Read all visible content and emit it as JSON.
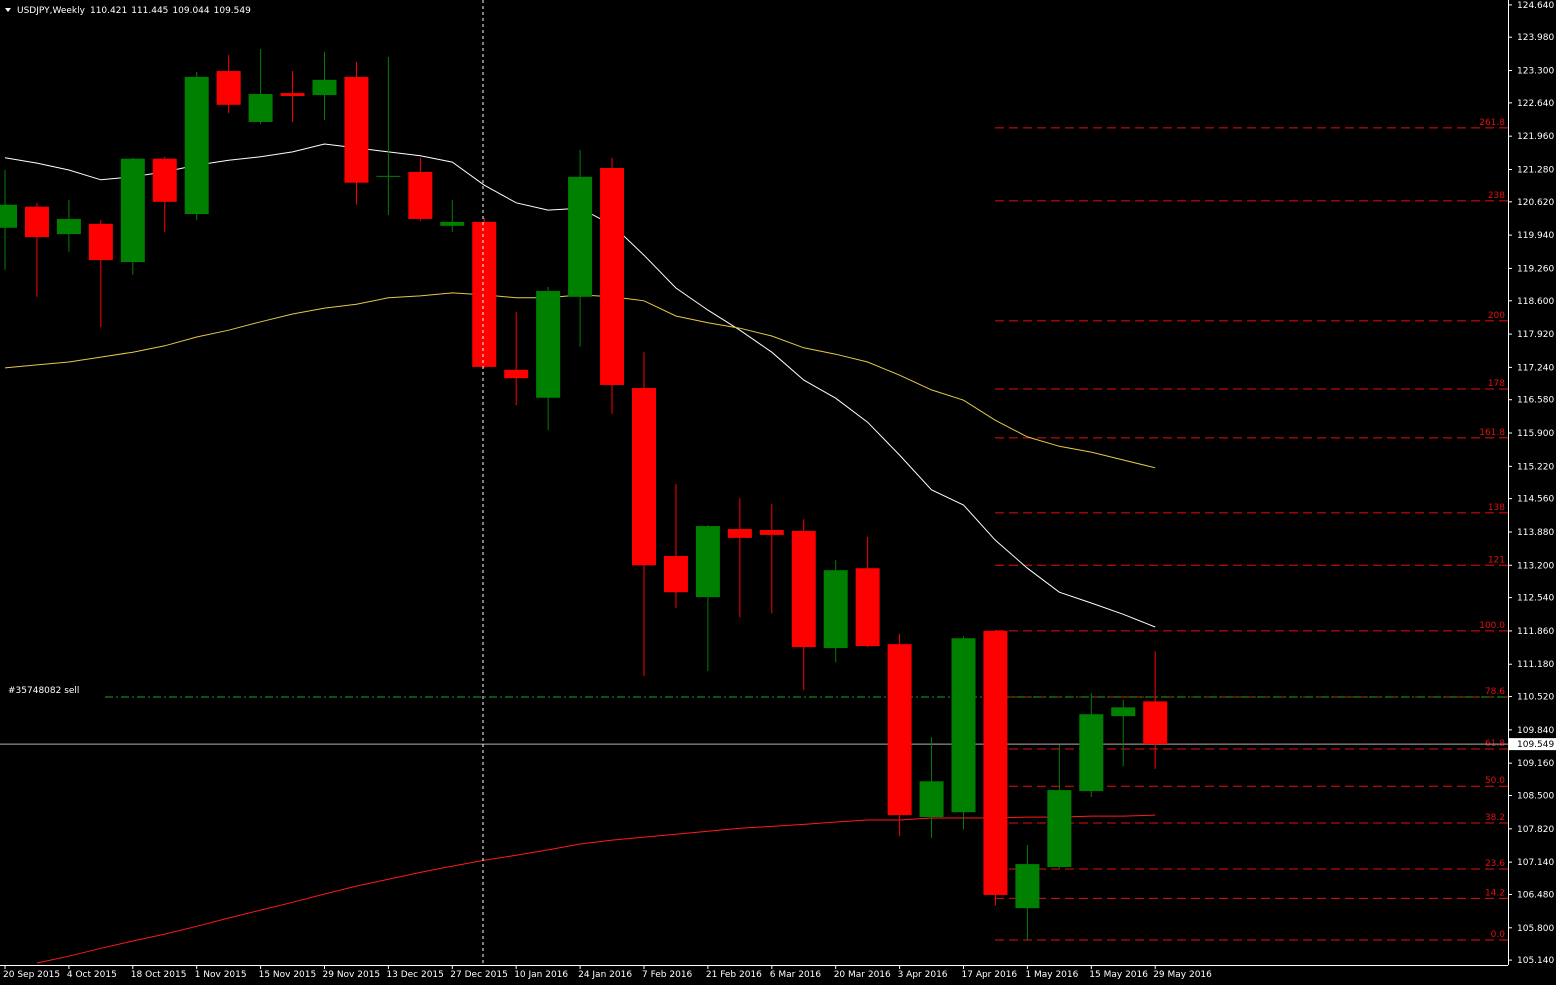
{
  "header": {
    "symbol": "USDJPY,Weekly"
  },
  "chart_data": {
    "type": "candlestick",
    "categories": [
      "20 Sep 2015",
      null,
      "4 Oct 2015",
      null,
      "18 Oct 2015",
      null,
      "1 Nov 2015",
      null,
      "15 Nov 2015",
      null,
      "29 Nov 2015",
      null,
      "13 Dec 2015",
      null,
      "27 Dec 2015",
      null,
      "10 Jan 2016",
      null,
      "24 Jan 2016",
      null,
      "7 Feb 2016",
      null,
      "21 Feb 2016",
      null,
      "6 Mar 2016",
      null,
      "20 Mar 2016",
      null,
      "3 Apr 2016",
      null,
      "17 Apr 2016",
      null,
      "1 May 2016",
      null,
      "15 May 2016",
      null,
      "29 May 2016"
    ],
    "ylim": [
      105.04,
      124.74
    ],
    "yticks": [
      {
        "value": 124.64,
        "label": "124.640"
      },
      {
        "value": 123.98,
        "label": "123.980"
      },
      {
        "value": 123.3,
        "label": "123.300"
      },
      {
        "value": 122.64,
        "label": "122.640"
      },
      {
        "value": 121.96,
        "label": "121.960"
      },
      {
        "value": 121.28,
        "label": "121.280"
      },
      {
        "value": 120.62,
        "label": "120.620"
      },
      {
        "value": 119.94,
        "label": "119.940"
      },
      {
        "value": 119.26,
        "label": "119.260"
      },
      {
        "value": 118.6,
        "label": "118.600"
      },
      {
        "value": 117.92,
        "label": "117.920"
      },
      {
        "value": 117.24,
        "label": "117.240"
      },
      {
        "value": 116.58,
        "label": "116.580"
      },
      {
        "value": 115.9,
        "label": "115.900"
      },
      {
        "value": 115.22,
        "label": "115.220"
      },
      {
        "value": 114.56,
        "label": "114.560"
      },
      {
        "value": 113.88,
        "label": "113.880"
      },
      {
        "value": 113.2,
        "label": "113.200"
      },
      {
        "value": 112.54,
        "label": "112.540"
      },
      {
        "value": 111.86,
        "label": "111.860"
      },
      {
        "value": 111.18,
        "label": "111.180"
      },
      {
        "value": 110.52,
        "label": "110.520"
      },
      {
        "value": 109.84,
        "label": "109.840"
      },
      {
        "value": 109.16,
        "label": "109.160"
      },
      {
        "value": 108.5,
        "label": "108.500"
      },
      {
        "value": 107.82,
        "label": "107.820"
      },
      {
        "value": 107.14,
        "label": "107.140"
      },
      {
        "value": 106.48,
        "label": "106.480"
      },
      {
        "value": 105.8,
        "label": "105.800"
      },
      {
        "value": 105.14,
        "label": "105.140"
      }
    ],
    "candles": {
      "open": [
        120.09,
        120.52,
        119.96,
        120.17,
        119.39,
        121.5,
        120.37,
        123.29,
        122.25,
        122.84,
        122.8,
        123.17,
        121.13,
        121.23,
        120.13,
        120.21,
        117.19,
        116.62,
        118.68,
        121.31,
        116.82,
        113.39,
        112.55,
        113.94,
        113.92,
        113.9,
        111.51,
        113.14,
        111.59,
        108.06,
        108.16,
        111.86,
        106.2,
        107.04,
        108.59,
        110.12,
        110.421
      ],
      "high": [
        121.27,
        120.6,
        120.66,
        120.25,
        121.52,
        121.54,
        123.27,
        123.62,
        123.74,
        123.29,
        123.68,
        123.48,
        123.58,
        121.52,
        120.66,
        120.29,
        118.37,
        118.88,
        121.68,
        121.52,
        117.55,
        114.86,
        114.02,
        114.57,
        114.45,
        114.14,
        113.31,
        113.78,
        111.8,
        109.69,
        111.75,
        111.88,
        107.49,
        109.53,
        110.59,
        110.45,
        111.445
      ],
      "low": [
        119.23,
        118.68,
        119.6,
        118.06,
        119.13,
        120.0,
        120.25,
        122.43,
        122.21,
        122.25,
        122.29,
        120.56,
        120.35,
        120.23,
        120.0,
        117.23,
        116.47,
        115.96,
        117.66,
        116.29,
        110.94,
        112.33,
        111.04,
        112.14,
        112.22,
        110.65,
        111.22,
        111.53,
        107.67,
        107.63,
        107.81,
        106.26,
        105.55,
        107.02,
        108.47,
        109.1,
        109.044
      ],
      "close": [
        120.56,
        119.9,
        120.27,
        119.43,
        121.5,
        120.62,
        123.17,
        122.6,
        122.82,
        122.78,
        123.11,
        121.01,
        121.15,
        120.27,
        120.21,
        117.25,
        117.02,
        118.8,
        121.13,
        116.88,
        113.2,
        112.65,
        114.0,
        113.76,
        113.82,
        111.53,
        113.1,
        111.55,
        108.1,
        108.79,
        111.71,
        106.47,
        107.1,
        108.61,
        110.16,
        110.3,
        109.549
      ]
    },
    "up_color": "#008000",
    "down_color": "#ff0000",
    "moving_averages": [
      {
        "color": "#ffffff",
        "values": [
          121.52,
          121.41,
          121.27,
          121.07,
          121.13,
          121.23,
          121.37,
          121.47,
          121.54,
          121.64,
          121.8,
          121.72,
          121.64,
          121.56,
          121.43,
          120.96,
          120.6,
          120.45,
          120.49,
          120.15,
          119.53,
          118.86,
          118.41,
          118.0,
          117.55,
          116.98,
          116.61,
          116.12,
          115.45,
          114.74,
          114.43,
          113.71,
          113.14,
          112.65,
          112.43,
          112.2,
          111.94
        ]
      },
      {
        "color": "#e6c84a",
        "values": [
          117.23,
          117.29,
          117.35,
          117.45,
          117.55,
          117.68,
          117.86,
          118.0,
          118.17,
          118.33,
          118.45,
          118.53,
          118.66,
          118.7,
          118.76,
          118.72,
          118.66,
          118.66,
          118.72,
          118.68,
          118.6,
          118.29,
          118.15,
          118.04,
          117.88,
          117.64,
          117.51,
          117.35,
          117.08,
          116.78,
          116.57,
          116.16,
          115.82,
          115.63,
          115.51,
          115.35,
          115.19
        ]
      },
      {
        "color": "#ff1a1a",
        "values": [
          null,
          105.08,
          105.22,
          105.38,
          105.53,
          105.67,
          105.83,
          106.0,
          106.16,
          106.32,
          106.49,
          106.65,
          106.79,
          106.93,
          107.06,
          107.18,
          107.28,
          107.39,
          107.51,
          107.59,
          107.65,
          107.71,
          107.77,
          107.83,
          107.87,
          107.91,
          107.96,
          108.0,
          108.0,
          108.04,
          108.04,
          108.04,
          108.06,
          108.06,
          108.08,
          108.08,
          108.1
        ]
      }
    ],
    "fib_color": "#e01010",
    "fib_levels": [
      {
        "label": "261.8",
        "price": 122.13
      },
      {
        "label": "238",
        "price": 120.64
      },
      {
        "label": "200",
        "price": 118.19
      },
      {
        "label": "178",
        "price": 116.8
      },
      {
        "label": "161.8",
        "price": 115.8
      },
      {
        "label": "138",
        "price": 114.27
      },
      {
        "label": "121",
        "price": 113.2
      },
      {
        "label": "100.0",
        "price": 111.86
      },
      {
        "label": "78.6",
        "price": 110.51
      },
      {
        "label": "61.8",
        "price": 109.45
      },
      {
        "label": "50.0",
        "price": 108.69
      },
      {
        "label": "38.2",
        "price": 107.94
      },
      {
        "label": "23.6",
        "price": 107.0
      },
      {
        "label": "14.2",
        "price": 106.4
      },
      {
        "label": "0.0",
        "price": 105.55
      }
    ],
    "order": {
      "label": "#35748082 sell",
      "price": 110.51,
      "color": "#1fa01f"
    },
    "current_price": 109.549
  }
}
